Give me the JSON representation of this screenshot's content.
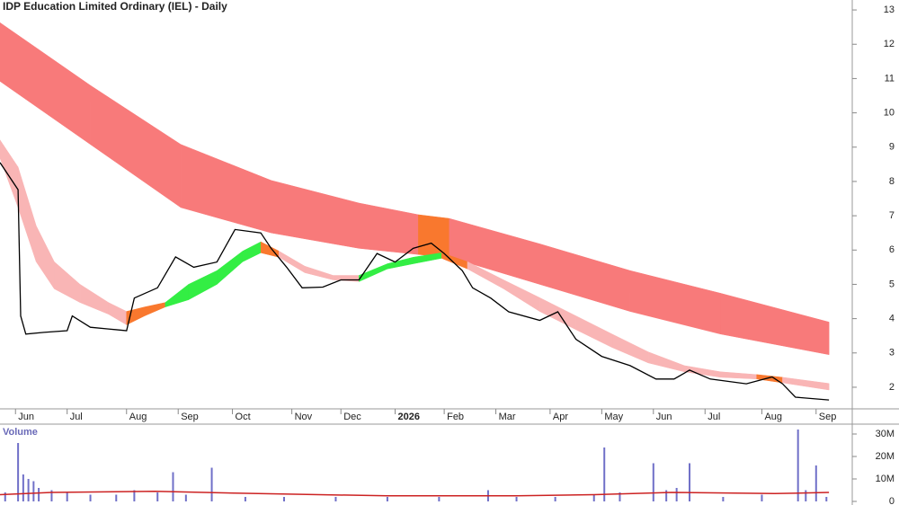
{
  "chart_data": [
    {
      "type": "line",
      "title": "IDP Education Limited Ordinary (IEL) - Daily",
      "xlim": [
        0,
        330
      ],
      "xticks": [
        {
          "value": 6,
          "label": "Jun"
        },
        {
          "value": 26,
          "label": "Jul"
        },
        {
          "value": 49,
          "label": "Aug"
        },
        {
          "value": 69,
          "label": "Sep"
        },
        {
          "value": 90,
          "label": "Oct"
        },
        {
          "value": 113,
          "label": "Nov"
        },
        {
          "value": 132,
          "label": "Dec"
        },
        {
          "value": 153,
          "label": "2026"
        },
        {
          "value": 172,
          "label": "Feb"
        },
        {
          "value": 192,
          "label": "Mar"
        },
        {
          "value": 213,
          "label": "Apr"
        },
        {
          "value": 233,
          "label": "May"
        },
        {
          "value": 253,
          "label": "Jun"
        },
        {
          "value": 273,
          "label": "Jul"
        },
        {
          "value": 295,
          "label": "Aug"
        },
        {
          "value": 316,
          "label": "Sep"
        }
      ],
      "ylim": [
        1.37,
        13.29
      ],
      "yticks": [
        2,
        3,
        4,
        5,
        6,
        7,
        8,
        9,
        10,
        11,
        12,
        13
      ],
      "long_band": {
        "x": [
          0,
          35,
          70,
          105,
          139,
          162,
          174,
          209,
          244,
          279,
          321
        ],
        "upper": [
          12.63,
          10.8,
          9.08,
          8.03,
          7.37,
          7.03,
          6.92,
          6.18,
          5.4,
          4.74,
          3.9
        ],
        "lower": [
          10.92,
          9.08,
          7.24,
          6.5,
          6.05,
          5.87,
          5.79,
          5.0,
          4.21,
          3.55,
          2.95
        ],
        "colors": [
          "#f87a7a",
          "#f87a7a",
          "#f87a7a",
          "#f87a7a",
          "#f87a7a",
          "#f9782e",
          "#f87a7a",
          "#f87a7a",
          "#f87a7a",
          "#f87a7a"
        ]
      },
      "short_band": {
        "x": [
          0,
          7,
          14,
          21,
          31,
          42,
          49,
          56,
          64,
          73,
          84,
          94,
          101,
          108,
          118,
          129,
          139,
          150,
          160,
          171,
          181,
          195,
          209,
          223,
          237,
          251,
          265,
          279,
          293,
          303,
          321
        ],
        "upper": [
          9.21,
          8.42,
          6.71,
          5.66,
          5.0,
          4.47,
          4.21,
          4.34,
          4.47,
          5.0,
          5.4,
          5.97,
          6.24,
          5.97,
          5.53,
          5.26,
          5.26,
          5.6,
          5.79,
          5.92,
          5.66,
          5.13,
          4.61,
          4.08,
          3.55,
          3.03,
          2.63,
          2.45,
          2.37,
          2.29,
          2.11
        ],
        "lower": [
          8.68,
          7.24,
          5.66,
          4.87,
          4.47,
          4.13,
          3.82,
          4.08,
          4.34,
          4.55,
          5.0,
          5.66,
          5.92,
          5.79,
          5.34,
          5.13,
          5.08,
          5.45,
          5.6,
          5.76,
          5.45,
          4.87,
          4.21,
          3.68,
          3.16,
          2.71,
          2.45,
          2.29,
          2.24,
          2.13,
          1.92
        ],
        "colors": [
          "#f9b5b5",
          "#f9b5b5",
          "#f9b5b5",
          "#f9b5b5",
          "#f9b5b5",
          "#f9b5b5",
          "#f9782e",
          "#f9782e",
          "#33ee44",
          "#33ee44",
          "#33ee44",
          "#33ee44",
          "#f9782e",
          "#f9b5b5",
          "#f9b5b5",
          "#f9b5b5",
          "#33ee44",
          "#33ee44",
          "#33ee44",
          "#f9782e",
          "#f9b5b5",
          "#f9b5b5",
          "#f9b5b5",
          "#f9b5b5",
          "#f9b5b5",
          "#f9b5b5",
          "#f9b5b5",
          "#f9b5b5",
          "#f9782e",
          "#f9b5b5"
        ]
      },
      "close": {
        "color": "#000000",
        "x": [
          0,
          7,
          8,
          10,
          17,
          26,
          28,
          35,
          42,
          49,
          52,
          61,
          68,
          75,
          84,
          91,
          101,
          105,
          111,
          117,
          125,
          132,
          139,
          146,
          153,
          160,
          167,
          172,
          179,
          183,
          190,
          197,
          209,
          216,
          223,
          233,
          244,
          254,
          261,
          267,
          275,
          289,
          299,
          303,
          308,
          321
        ],
        "values": [
          8.55,
          7.76,
          4.08,
          3.55,
          3.6,
          3.65,
          4.08,
          3.75,
          3.7,
          3.65,
          4.6,
          4.9,
          5.8,
          5.5,
          5.65,
          6.6,
          6.5,
          6.05,
          5.5,
          4.9,
          4.92,
          5.13,
          5.13,
          5.9,
          5.65,
          6.05,
          6.2,
          5.9,
          5.4,
          4.9,
          4.6,
          4.2,
          3.95,
          4.2,
          3.4,
          2.9,
          2.63,
          2.24,
          2.24,
          2.5,
          2.24,
          2.1,
          2.3,
          2.1,
          1.71,
          1.63
        ]
      }
    },
    {
      "type": "bar",
      "title": "Volume",
      "xlim": [
        0,
        330
      ],
      "color": "#7070c8",
      "ylim": [
        0,
        34400000
      ],
      "yticks": [
        0,
        {
          "value": 10000000,
          "label": "10M"
        },
        {
          "value": 20000000,
          "label": "20M"
        },
        {
          "value": 30000000,
          "label": "30M"
        }
      ],
      "x": [
        2,
        7,
        9,
        11,
        13,
        15,
        20,
        26,
        35,
        45,
        52,
        61,
        67,
        72,
        82,
        95,
        110,
        130,
        150,
        170,
        189,
        200,
        215,
        230,
        234,
        240,
        253,
        258,
        262,
        267,
        280,
        295,
        309,
        312,
        316,
        320
      ],
      "values": [
        4000000,
        26000000,
        12000000,
        10000000,
        9000000,
        6000000,
        5000000,
        4000000,
        3000000,
        3000000,
        5000000,
        4000000,
        13000000,
        3000000,
        15000000,
        2000000,
        2000000,
        2000000,
        2000000,
        2000000,
        5000000,
        2000000,
        2000000,
        3000000,
        24000000,
        4000000,
        17000000,
        5000000,
        6000000,
        17000000,
        2000000,
        3000000,
        32000000,
        5000000,
        16000000,
        2000000
      ],
      "average": {
        "color": "#cc2222",
        "x": [
          0,
          20,
          60,
          100,
          150,
          200,
          230,
          260,
          300,
          321
        ],
        "values": [
          3000000,
          4000000,
          4500000,
          3500000,
          2500000,
          2500000,
          3000000,
          4000000,
          3500000,
          4000000
        ]
      }
    }
  ]
}
